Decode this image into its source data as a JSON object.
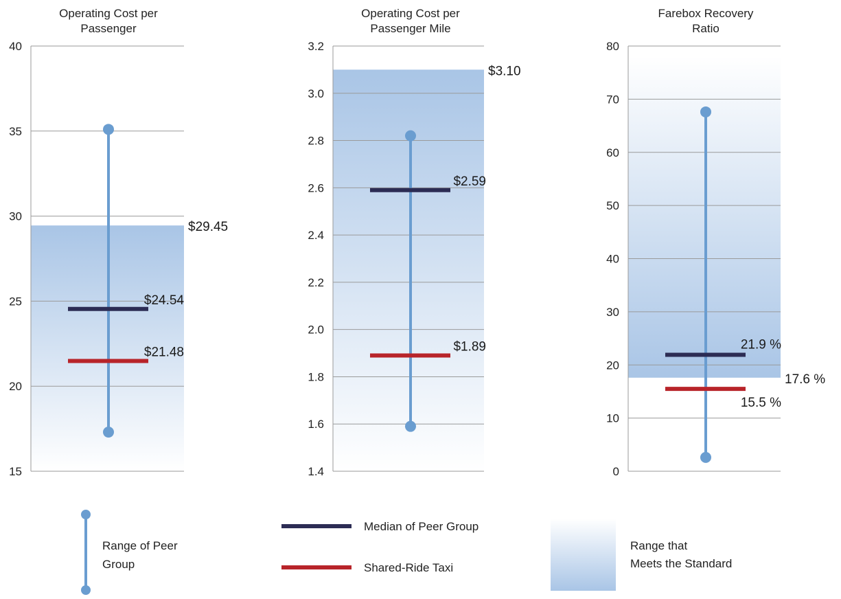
{
  "colors": {
    "range": "#6a9dd0",
    "median": "#2c2c54",
    "taxi": "#b8242a",
    "band": "#a9c5e6",
    "grid": "#9a9a9a"
  },
  "chart_data": [
    {
      "type": "range-plot",
      "title_lines": [
        "Operating Cost per",
        "Passenger"
      ],
      "ylim": [
        15,
        40
      ],
      "yticks": [
        15,
        20,
        25,
        30,
        35,
        40
      ],
      "ytick_labels": [
        "15",
        "20",
        "25",
        "30",
        "35",
        "40"
      ],
      "range": [
        17.3,
        35.1
      ],
      "median": 24.54,
      "median_label": "$24.54",
      "taxi": 21.48,
      "taxi_label": "$21.48",
      "standard": 29.45,
      "standard_label": "$29.45",
      "standard_dir": "below"
    },
    {
      "type": "range-plot",
      "title_lines": [
        "Operating Cost per",
        "Passenger Mile"
      ],
      "ylim": [
        1.4,
        3.2
      ],
      "yticks": [
        1.4,
        1.6,
        1.8,
        2.0,
        2.2,
        2.4,
        2.6,
        2.8,
        3.0,
        3.2
      ],
      "ytick_labels": [
        "1.4",
        "1.6",
        "1.8",
        "2.0",
        "2.2",
        "2.4",
        "2.6",
        "2.8",
        "3.0",
        "3.2"
      ],
      "range": [
        1.59,
        2.82
      ],
      "median": 2.59,
      "median_label": "$2.59",
      "taxi": 1.89,
      "taxi_label": "$1.89",
      "standard": 3.1,
      "standard_label": "$3.10",
      "standard_dir": "below"
    },
    {
      "type": "range-plot",
      "title_lines": [
        "Farebox Recovery",
        "Ratio"
      ],
      "ylim": [
        0,
        80
      ],
      "yticks": [
        0,
        10,
        20,
        30,
        40,
        50,
        60,
        70,
        80
      ],
      "ytick_labels": [
        "0",
        "10",
        "20",
        "30",
        "40",
        "50",
        "60",
        "70",
        "80"
      ],
      "range": [
        2.6,
        67.6
      ],
      "median": 21.9,
      "median_label": "21.9 %",
      "taxi": 15.5,
      "taxi_label": "15.5 %",
      "standard": 17.6,
      "standard_label": "17.6 %",
      "standard_dir": "above"
    }
  ],
  "legend": {
    "range_label": [
      "Range of Peer",
      "Group"
    ],
    "median_label": "Median of Peer Group",
    "taxi_label": "Shared-Ride Taxi",
    "standard_label": [
      "Range that",
      "Meets the Standard"
    ]
  }
}
